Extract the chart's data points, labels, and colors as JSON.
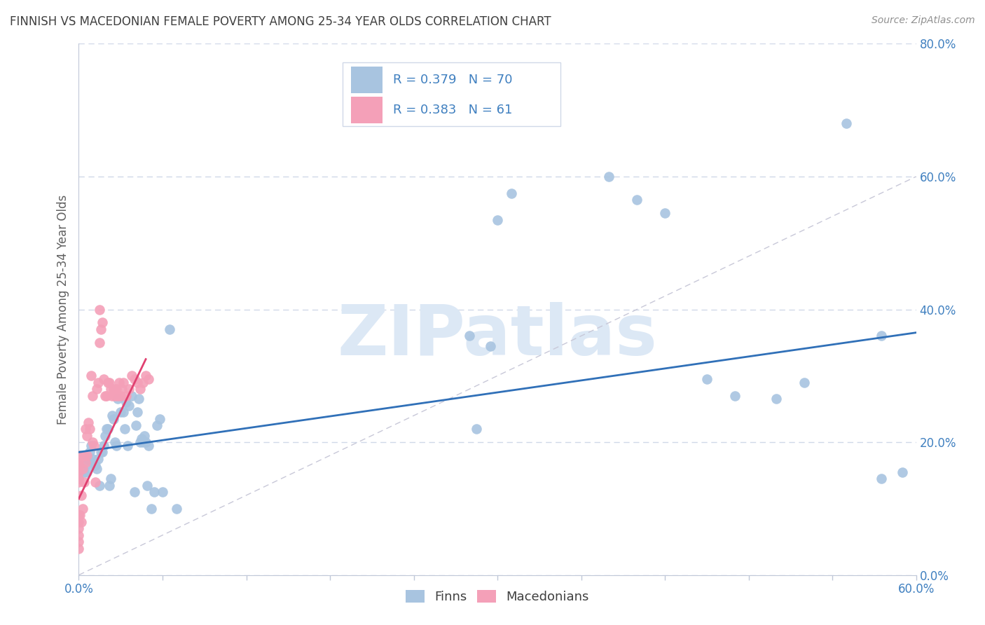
{
  "title": "FINNISH VS MACEDONIAN FEMALE POVERTY AMONG 25-34 YEAR OLDS CORRELATION CHART",
  "source": "Source: ZipAtlas.com",
  "ylabel": "Female Poverty Among 25-34 Year Olds",
  "xlim": [
    0.0,
    0.6
  ],
  "ylim": [
    0.0,
    0.8
  ],
  "xticks": [
    0.0,
    0.06,
    0.12,
    0.18,
    0.24,
    0.3,
    0.36,
    0.42,
    0.48,
    0.54,
    0.6
  ],
  "yticks": [
    0.0,
    0.2,
    0.4,
    0.6,
    0.8
  ],
  "xtick_labels_show": [
    "0.0%",
    "",
    "",
    "",
    "",
    "",
    "",
    "",
    "",
    "",
    "60.0%"
  ],
  "ytick_labels": [
    "0.0%",
    "20.0%",
    "40.0%",
    "60.0%",
    "80.0%"
  ],
  "finn_R": 0.379,
  "finn_N": 70,
  "mac_R": 0.383,
  "mac_N": 61,
  "finn_color": "#a8c4e0",
  "mac_color": "#f4a0b8",
  "finn_line_color": "#3070b8",
  "mac_line_color": "#e04070",
  "diag_line_color": "#c8c8d8",
  "watermark": "ZIPatlas",
  "watermark_color": "#dce8f5",
  "background_color": "#ffffff",
  "grid_color": "#d0d8e8",
  "title_color": "#404040",
  "axis_label_color": "#606060",
  "tick_color": "#4080c0",
  "legend_r_color": "#4080c0",
  "finn_trend_x0": 0.0,
  "finn_trend_y0": 0.185,
  "finn_trend_x1": 0.6,
  "finn_trend_y1": 0.365,
  "mac_trend_x0": 0.0,
  "mac_trend_y0": 0.115,
  "mac_trend_x1": 0.048,
  "mac_trend_y1": 0.325,
  "finn_x": [
    0.0,
    0.0,
    0.0,
    0.002,
    0.004,
    0.005,
    0.006,
    0.007,
    0.008,
    0.009,
    0.01,
    0.011,
    0.012,
    0.013,
    0.014,
    0.015,
    0.016,
    0.017,
    0.018,
    0.019,
    0.02,
    0.021,
    0.022,
    0.023,
    0.024,
    0.025,
    0.026,
    0.027,
    0.028,
    0.03,
    0.032,
    0.033,
    0.034,
    0.035,
    0.036,
    0.038,
    0.04,
    0.041,
    0.042,
    0.043,
    0.044,
    0.045,
    0.046,
    0.047,
    0.048,
    0.049,
    0.05,
    0.052,
    0.054,
    0.056,
    0.058,
    0.06,
    0.065,
    0.07,
    0.28,
    0.295,
    0.38,
    0.4,
    0.45,
    0.5,
    0.52,
    0.55,
    0.575,
    0.59,
    0.3,
    0.31,
    0.42,
    0.47,
    0.285,
    0.575
  ],
  "finn_y": [
    0.165,
    0.155,
    0.145,
    0.16,
    0.155,
    0.165,
    0.155,
    0.175,
    0.185,
    0.195,
    0.175,
    0.165,
    0.165,
    0.16,
    0.175,
    0.135,
    0.185,
    0.185,
    0.195,
    0.21,
    0.22,
    0.22,
    0.135,
    0.145,
    0.24,
    0.235,
    0.2,
    0.195,
    0.265,
    0.245,
    0.245,
    0.22,
    0.26,
    0.195,
    0.255,
    0.27,
    0.125,
    0.225,
    0.245,
    0.265,
    0.2,
    0.205,
    0.2,
    0.21,
    0.2,
    0.135,
    0.195,
    0.1,
    0.125,
    0.225,
    0.235,
    0.125,
    0.37,
    0.1,
    0.36,
    0.345,
    0.6,
    0.565,
    0.295,
    0.265,
    0.29,
    0.68,
    0.145,
    0.155,
    0.535,
    0.575,
    0.545,
    0.27,
    0.22,
    0.36
  ],
  "mac_x": [
    0.0,
    0.0,
    0.0,
    0.0,
    0.0,
    0.0,
    0.0,
    0.0,
    0.0,
    0.0,
    0.0,
    0.0,
    0.001,
    0.001,
    0.002,
    0.002,
    0.003,
    0.003,
    0.004,
    0.004,
    0.005,
    0.005,
    0.006,
    0.006,
    0.007,
    0.008,
    0.009,
    0.01,
    0.01,
    0.011,
    0.012,
    0.013,
    0.014,
    0.015,
    0.015,
    0.016,
    0.017,
    0.018,
    0.019,
    0.02,
    0.021,
    0.022,
    0.023,
    0.024,
    0.025,
    0.026,
    0.027,
    0.028,
    0.029,
    0.03,
    0.031,
    0.032,
    0.034,
    0.036,
    0.038,
    0.04,
    0.042,
    0.044,
    0.046,
    0.048,
    0.05
  ],
  "mac_y": [
    0.145,
    0.14,
    0.155,
    0.16,
    0.165,
    0.17,
    0.09,
    0.08,
    0.07,
    0.06,
    0.05,
    0.04,
    0.18,
    0.09,
    0.12,
    0.08,
    0.16,
    0.1,
    0.18,
    0.14,
    0.22,
    0.17,
    0.21,
    0.18,
    0.23,
    0.22,
    0.3,
    0.27,
    0.2,
    0.195,
    0.14,
    0.28,
    0.29,
    0.35,
    0.4,
    0.37,
    0.38,
    0.295,
    0.27,
    0.27,
    0.29,
    0.29,
    0.28,
    0.27,
    0.28,
    0.27,
    0.28,
    0.27,
    0.29,
    0.27,
    0.28,
    0.29,
    0.27,
    0.28,
    0.3,
    0.295,
    0.29,
    0.28,
    0.29,
    0.3,
    0.295
  ]
}
